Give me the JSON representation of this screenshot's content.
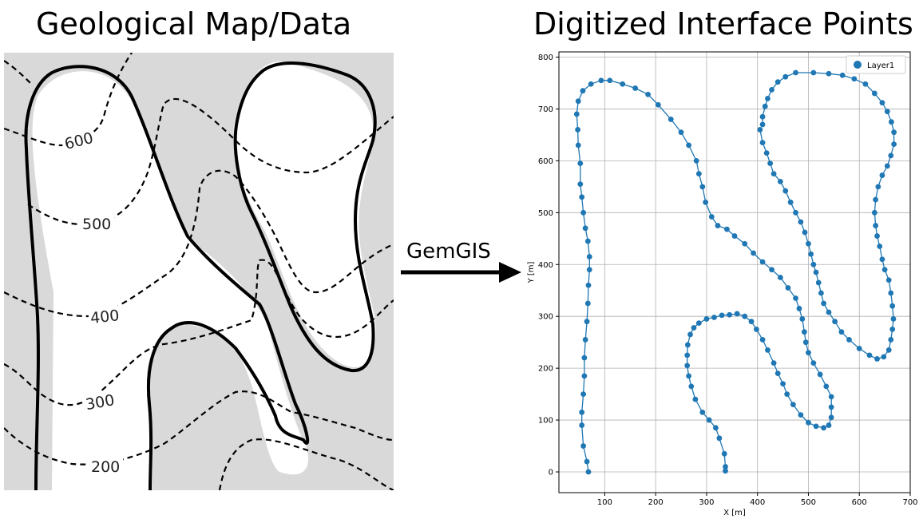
{
  "left_title": "Geological Map/Data",
  "right_title": "Digitized Interface Points",
  "arrow_label": "GemGIS",
  "map_labels": [
    "600",
    "500",
    "400",
    "300",
    "200"
  ],
  "chart_data": {
    "type": "scatter",
    "title": "",
    "xlabel": "X [m]",
    "ylabel": "Y [m]",
    "xlim": [
      10,
      700
    ],
    "ylim": [
      -40,
      810
    ],
    "xticks": [
      100,
      200,
      300,
      400,
      500,
      600,
      700
    ],
    "yticks": [
      0,
      100,
      200,
      300,
      400,
      500,
      600,
      700,
      800
    ],
    "grid": true,
    "legend": "top-right",
    "color": "#1f77b4",
    "series": [
      {
        "name": "Layer1",
        "points": [
          [
            68,
            0
          ],
          [
            65,
            20
          ],
          [
            58,
            50
          ],
          [
            55,
            90
          ],
          [
            55,
            115
          ],
          [
            58,
            150
          ],
          [
            60,
            185
          ],
          [
            60,
            220
          ],
          [
            62,
            255
          ],
          [
            65,
            290
          ],
          [
            67,
            325
          ],
          [
            68,
            360
          ],
          [
            70,
            390
          ],
          [
            70,
            415
          ],
          [
            67,
            445
          ],
          [
            62,
            470
          ],
          [
            58,
            500
          ],
          [
            55,
            530
          ],
          [
            52,
            555
          ],
          [
            52,
            595
          ],
          [
            48,
            630
          ],
          [
            47,
            660
          ],
          [
            45,
            690
          ],
          [
            48,
            715
          ],
          [
            57,
            735
          ],
          [
            73,
            748
          ],
          [
            93,
            755
          ],
          [
            110,
            755
          ],
          [
            135,
            748
          ],
          [
            160,
            740
          ],
          [
            185,
            728
          ],
          [
            205,
            708
          ],
          [
            230,
            680
          ],
          [
            250,
            655
          ],
          [
            265,
            630
          ],
          [
            280,
            600
          ],
          [
            285,
            575
          ],
          [
            292,
            550
          ],
          [
            298,
            520
          ],
          [
            310,
            492
          ],
          [
            322,
            475
          ],
          [
            340,
            468
          ],
          [
            355,
            455
          ],
          [
            375,
            440
          ],
          [
            392,
            422
          ],
          [
            410,
            405
          ],
          [
            428,
            390
          ],
          [
            445,
            375
          ],
          [
            460,
            355
          ],
          [
            475,
            335
          ],
          [
            482,
            315
          ],
          [
            488,
            295
          ],
          [
            492,
            270
          ],
          [
            495,
            250
          ],
          [
            500,
            230
          ],
          [
            510,
            210
          ],
          [
            523,
            188
          ],
          [
            535,
            165
          ],
          [
            545,
            145
          ],
          [
            545,
            125
          ],
          [
            545,
            105
          ],
          [
            540,
            90
          ],
          [
            530,
            85
          ],
          [
            515,
            88
          ],
          [
            500,
            95
          ],
          [
            485,
            110
          ],
          [
            470,
            130
          ],
          [
            458,
            150
          ],
          [
            450,
            170
          ],
          [
            440,
            190
          ],
          [
            432,
            210
          ],
          [
            420,
            235
          ],
          [
            410,
            255
          ],
          [
            398,
            275
          ],
          [
            388,
            290
          ],
          [
            375,
            300
          ],
          [
            360,
            305
          ],
          [
            345,
            303
          ],
          [
            330,
            302
          ],
          [
            315,
            298
          ],
          [
            300,
            295
          ],
          [
            285,
            287
          ],
          [
            275,
            278
          ],
          [
            268,
            265
          ],
          [
            263,
            245
          ],
          [
            262,
            225
          ],
          [
            262,
            205
          ],
          [
            265,
            185
          ],
          [
            270,
            165
          ],
          [
            278,
            140
          ],
          [
            292,
            115
          ],
          [
            305,
            100
          ],
          [
            318,
            85
          ],
          [
            325,
            65
          ],
          [
            335,
            35
          ],
          [
            337,
            10
          ],
          [
            337,
            2
          ]
        ]
      },
      {
        "name": "",
        "points": [
          [
            405,
            660
          ],
          [
            410,
            635
          ],
          [
            418,
            615
          ],
          [
            425,
            595
          ],
          [
            432,
            575
          ],
          [
            445,
            560
          ],
          [
            455,
            542
          ],
          [
            465,
            520
          ],
          [
            475,
            500
          ],
          [
            485,
            482
          ],
          [
            493,
            462
          ],
          [
            500,
            440
          ],
          [
            505,
            420
          ],
          [
            510,
            400
          ],
          [
            515,
            385
          ],
          [
            520,
            365
          ],
          [
            525,
            345
          ],
          [
            530,
            325
          ],
          [
            540,
            308
          ],
          [
            552,
            290
          ],
          [
            565,
            270
          ],
          [
            580,
            255
          ],
          [
            600,
            238
          ],
          [
            620,
            225
          ],
          [
            635,
            218
          ],
          [
            648,
            222
          ],
          [
            658,
            235
          ],
          [
            662,
            255
          ],
          [
            665,
            275
          ],
          [
            667,
            295
          ],
          [
            665,
            320
          ],
          [
            662,
            345
          ],
          [
            658,
            370
          ],
          [
            650,
            390
          ],
          [
            645,
            410
          ],
          [
            640,
            435
          ],
          [
            635,
            455
          ],
          [
            632,
            475
          ],
          [
            630,
            500
          ],
          [
            632,
            525
          ],
          [
            637,
            550
          ],
          [
            645,
            572
          ],
          [
            655,
            590
          ],
          [
            662,
            610
          ],
          [
            668,
            632
          ],
          [
            668,
            655
          ],
          [
            663,
            675
          ],
          [
            655,
            695
          ],
          [
            645,
            712
          ],
          [
            630,
            730
          ],
          [
            612,
            748
          ],
          [
            590,
            758
          ],
          [
            567,
            765
          ],
          [
            540,
            768
          ],
          [
            510,
            770
          ],
          [
            475,
            770
          ],
          [
            455,
            762
          ],
          [
            440,
            752
          ],
          [
            428,
            737
          ],
          [
            420,
            720
          ],
          [
            415,
            705
          ],
          [
            410,
            685
          ],
          [
            410,
            670
          ]
        ]
      }
    ]
  }
}
